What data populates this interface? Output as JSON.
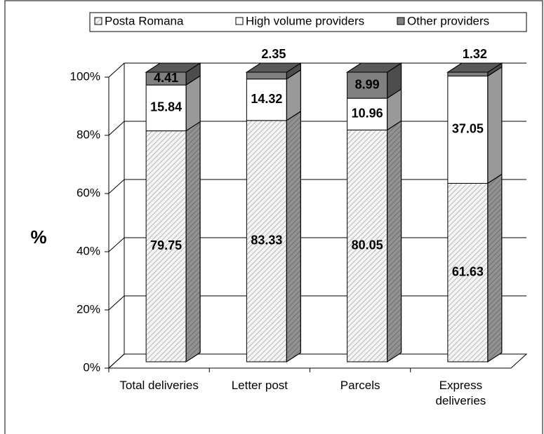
{
  "chart_data": {
    "type": "stacked-bar-3d",
    "ylabel": "%",
    "categories": [
      "Total deliveries",
      "Letter post",
      "Parcels",
      "Express deliveries"
    ],
    "series": [
      {
        "name": "Posta Romana",
        "color": "#b8b8b8",
        "pattern": "diagonal",
        "values": [
          79.75,
          83.33,
          80.05,
          61.63
        ]
      },
      {
        "name": "High volume providers",
        "color": "#ffffff",
        "values": [
          15.84,
          14.32,
          10.96,
          37.05
        ]
      },
      {
        "name": "Other providers",
        "color": "#808080",
        "values": [
          4.41,
          2.35,
          8.99,
          1.32
        ]
      }
    ],
    "ylim": [
      0,
      100
    ],
    "yticks": [
      {
        "value": 0,
        "label": "0%"
      },
      {
        "value": 20,
        "label": "20%"
      },
      {
        "value": 40,
        "label": "40%"
      },
      {
        "value": 60,
        "label": "60%"
      },
      {
        "value": 80,
        "label": "80%"
      },
      {
        "value": 100,
        "label": "100%"
      }
    ],
    "grid": true,
    "legend": "top"
  }
}
